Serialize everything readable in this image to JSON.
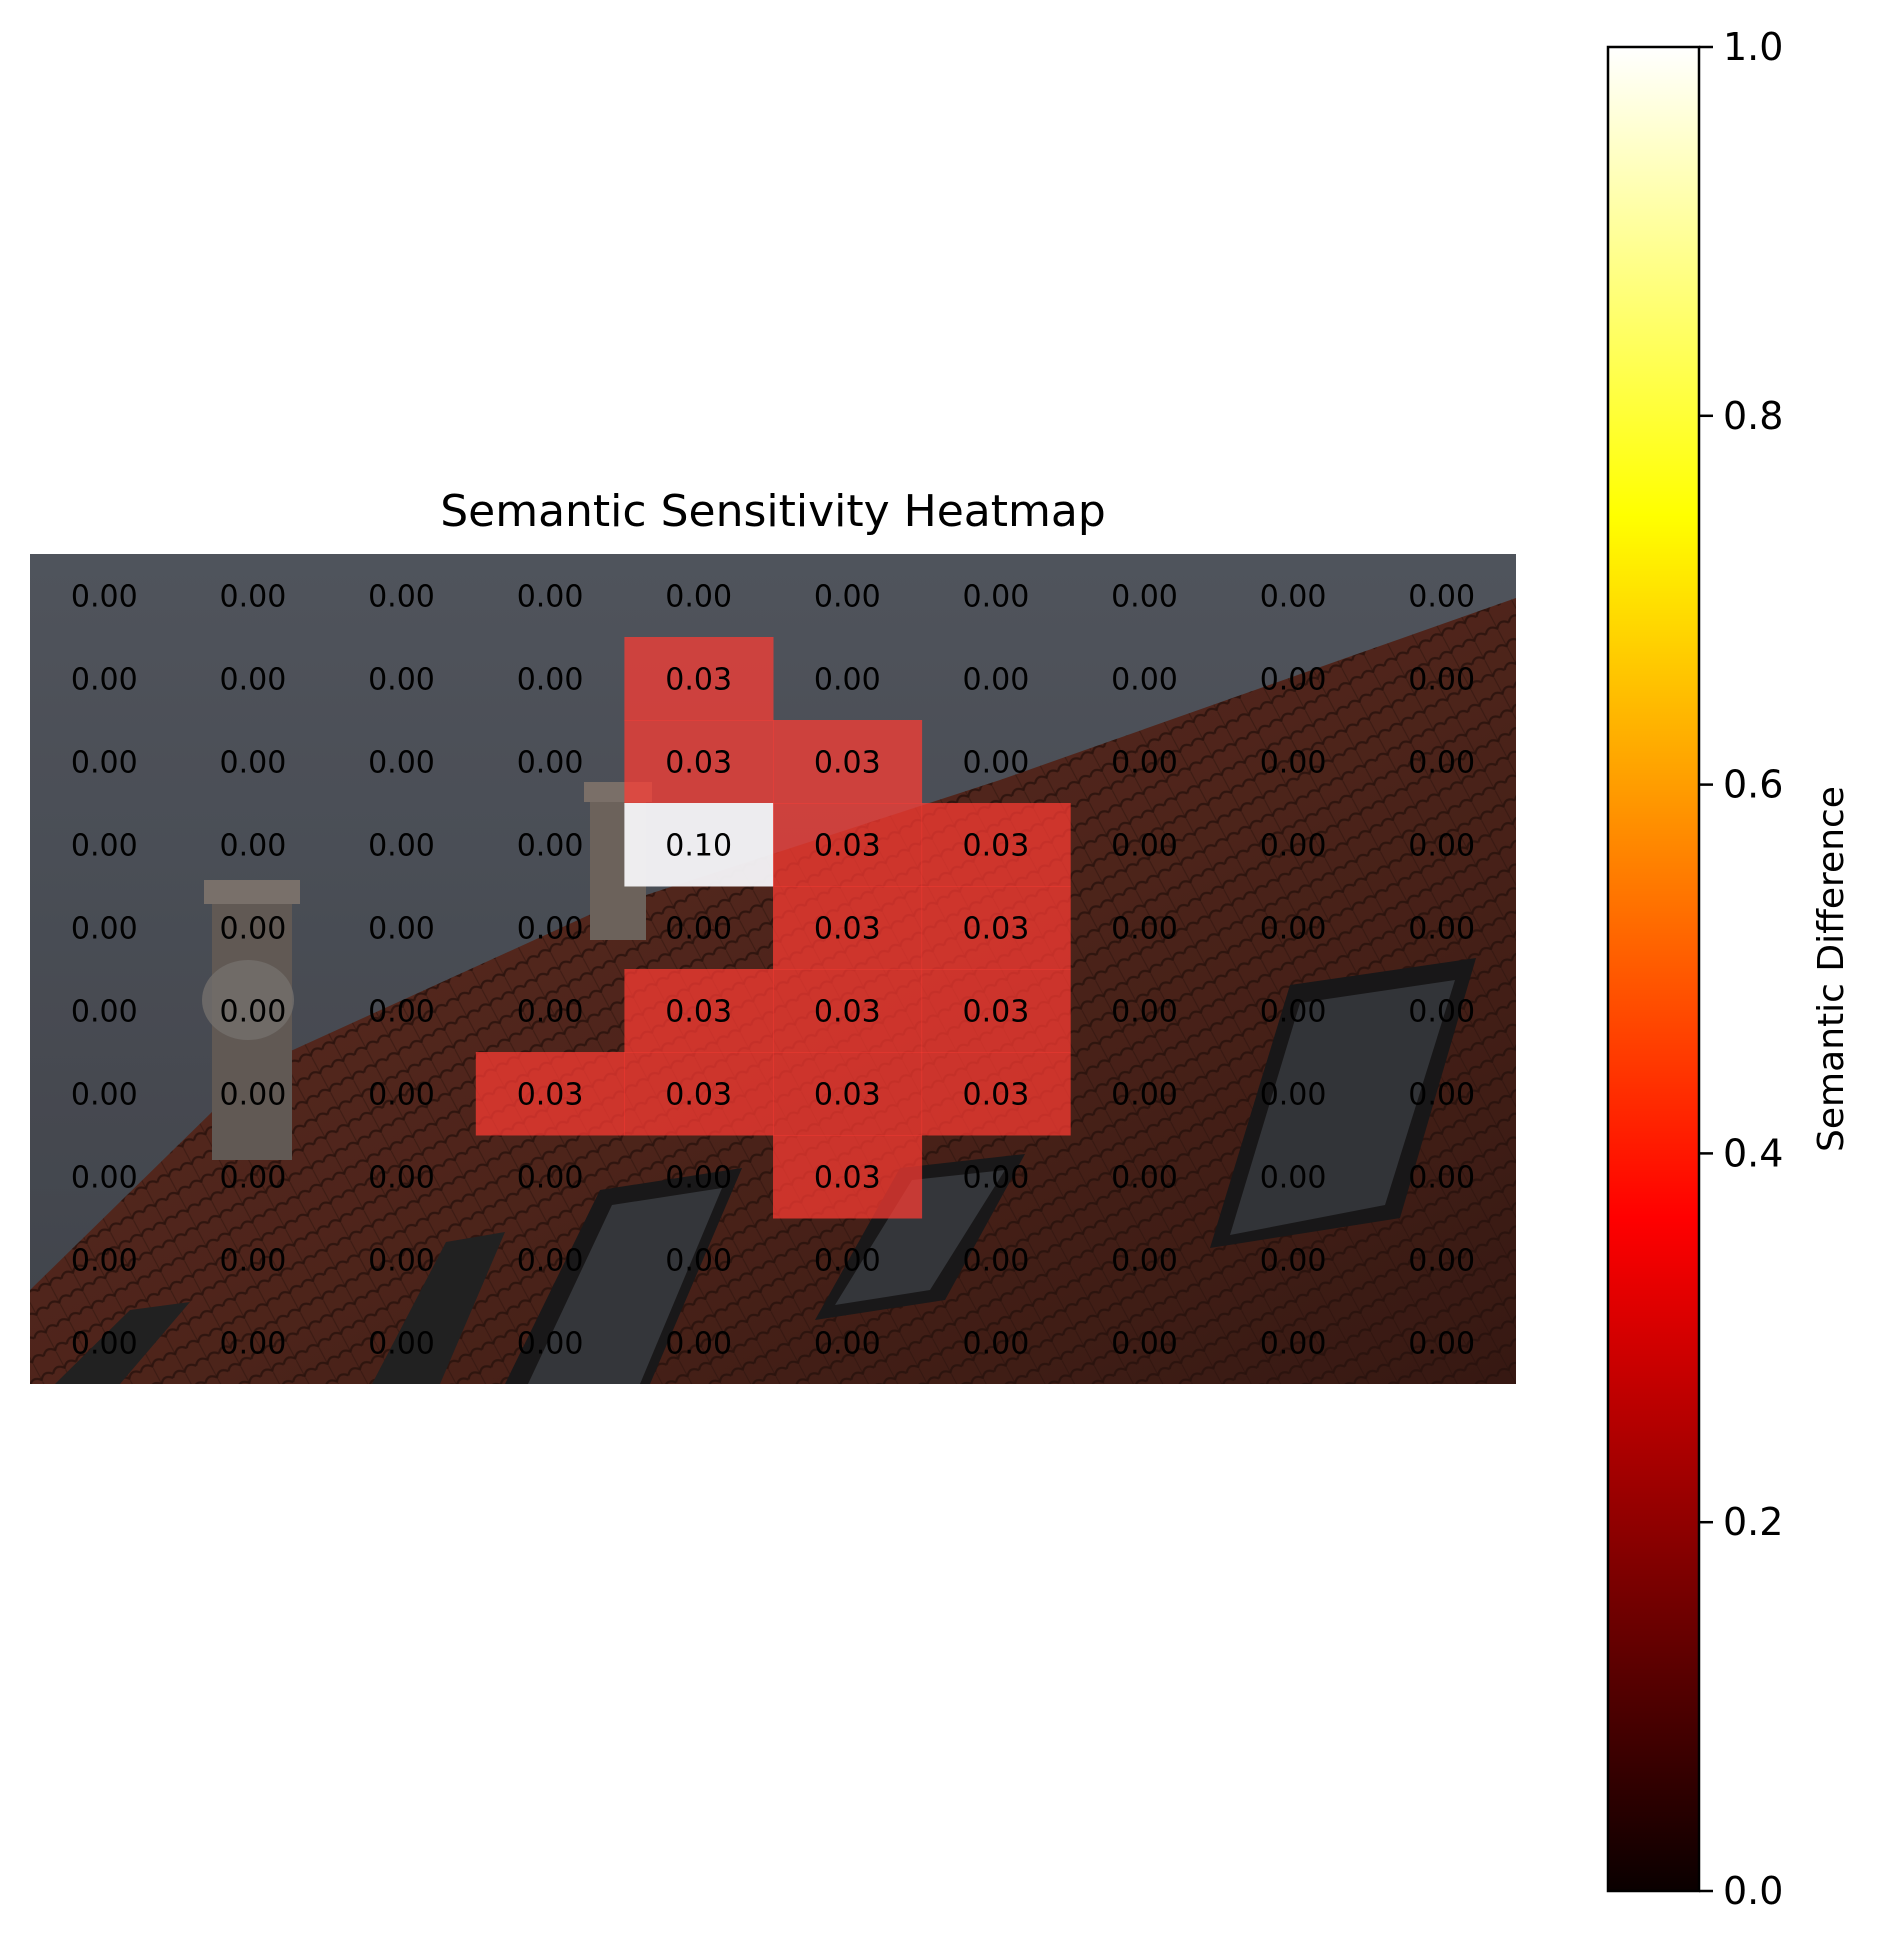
{
  "chart_data": {
    "type": "heatmap",
    "title": "Semantic Sensitivity Heatmap",
    "rows": 10,
    "cols": 10,
    "values": [
      [
        0.0,
        0.0,
        0.0,
        0.0,
        0.0,
        0.0,
        0.0,
        0.0,
        0.0,
        0.0
      ],
      [
        0.0,
        0.0,
        0.0,
        0.0,
        0.03,
        0.0,
        0.0,
        0.0,
        0.0,
        0.0
      ],
      [
        0.0,
        0.0,
        0.0,
        0.0,
        0.03,
        0.03,
        0.0,
        0.0,
        0.0,
        0.0
      ],
      [
        0.0,
        0.0,
        0.0,
        0.0,
        0.1,
        0.03,
        0.03,
        0.0,
        0.0,
        0.0
      ],
      [
        0.0,
        0.0,
        0.0,
        0.0,
        0.0,
        0.03,
        0.03,
        0.0,
        0.0,
        0.0
      ],
      [
        0.0,
        0.0,
        0.0,
        0.0,
        0.03,
        0.03,
        0.03,
        0.0,
        0.0,
        0.0
      ],
      [
        0.0,
        0.0,
        0.0,
        0.03,
        0.03,
        0.03,
        0.03,
        0.0,
        0.0,
        0.0
      ],
      [
        0.0,
        0.0,
        0.0,
        0.0,
        0.0,
        0.03,
        0.0,
        0.0,
        0.0,
        0.0
      ],
      [
        0.0,
        0.0,
        0.0,
        0.0,
        0.0,
        0.0,
        0.0,
        0.0,
        0.0,
        0.0
      ],
      [
        0.0,
        0.0,
        0.0,
        0.0,
        0.0,
        0.0,
        0.0,
        0.0,
        0.0,
        0.0
      ]
    ],
    "colorbar": {
      "label": "Semantic Difference",
      "range": [
        0.0,
        1.0
      ],
      "ticks": [
        0.0,
        0.2,
        0.4,
        0.6,
        0.8,
        1.0
      ],
      "tick_labels": [
        "0.0",
        "0.2",
        "0.4",
        "0.6",
        "0.8",
        "1.0"
      ],
      "colormap": "hot"
    },
    "background": "photo of a red tiled roof with chimneys and skylights under a grey sky",
    "grid": false
  }
}
